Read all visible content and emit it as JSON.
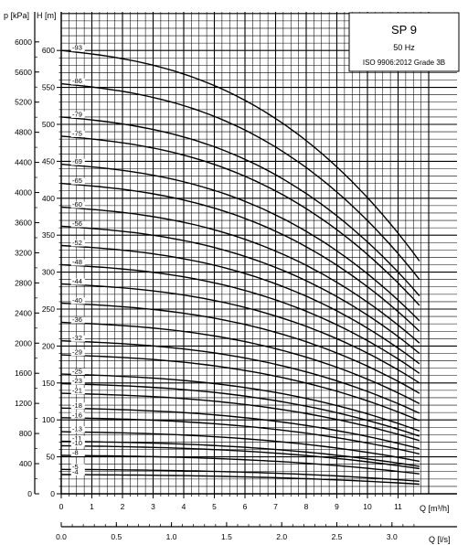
{
  "chart_data": {
    "type": "line",
    "x_units_label": "Q [m³/h]",
    "x2_units_label": "Q [l/s]",
    "y_units_label_left": "p [kPa]",
    "y_units_label_right": "H [m]",
    "title": "SP 9",
    "subtitle": "50 Hz",
    "standard": "ISO 9906:2012 Grade 3B",
    "xlim": [
      0,
      12
    ],
    "ylim": [
      0,
      650
    ],
    "grid": true,
    "x_ticks": [
      "0",
      "1",
      "2",
      "3",
      "4",
      "5",
      "6",
      "7",
      "8",
      "9",
      "10",
      "11"
    ],
    "x2_ticks": [
      "0.0",
      "0.5",
      "1.0",
      "1.5",
      "2.0",
      "2.5",
      "3.0"
    ],
    "h_ticks": [
      "0",
      "50",
      "100",
      "150",
      "200",
      "250",
      "300",
      "350",
      "400",
      "450",
      "500",
      "550",
      "600"
    ],
    "p_ticks": [
      "0",
      "400",
      "800",
      "1200",
      "1600",
      "2000",
      "2400",
      "2800",
      "3200",
      "3600",
      "4000",
      "4400",
      "4800",
      "5200",
      "5600",
      "6000"
    ],
    "series": [
      {
        "name": "-93",
        "h0": 600,
        "h_end": 315
      },
      {
        "name": "-86",
        "h0": 555,
        "h_end": 290
      },
      {
        "name": "-79",
        "h0": 510,
        "h_end": 268
      },
      {
        "name": "-75",
        "h0": 484,
        "h_end": 255
      },
      {
        "name": "-69",
        "h0": 446,
        "h_end": 234
      },
      {
        "name": "-65",
        "h0": 420,
        "h_end": 220
      },
      {
        "name": "-60",
        "h0": 388,
        "h_end": 204
      },
      {
        "name": "-56",
        "h0": 362,
        "h_end": 190
      },
      {
        "name": "-52",
        "h0": 336,
        "h_end": 176
      },
      {
        "name": "-48",
        "h0": 310,
        "h_end": 163
      },
      {
        "name": "-44",
        "h0": 284,
        "h_end": 150
      },
      {
        "name": "-40",
        "h0": 258,
        "h_end": 136
      },
      {
        "name": "-36",
        "h0": 232,
        "h_end": 122
      },
      {
        "name": "-32",
        "h0": 207,
        "h_end": 109
      },
      {
        "name": "-29",
        "h0": 188,
        "h_end": 99
      },
      {
        "name": "-25",
        "h0": 162,
        "h_end": 85
      },
      {
        "name": "-23",
        "h0": 149,
        "h_end": 78
      },
      {
        "name": "-21",
        "h0": 136,
        "h_end": 72
      },
      {
        "name": "-18",
        "h0": 116,
        "h_end": 61
      },
      {
        "name": "-16",
        "h0": 103,
        "h_end": 54
      },
      {
        "name": "-13",
        "h0": 84,
        "h_end": 44
      },
      {
        "name": "-11",
        "h0": 71,
        "h_end": 37
      },
      {
        "name": "-10",
        "h0": 65,
        "h_end": 34
      },
      {
        "name": "-8",
        "h0": 52,
        "h_end": 27
      },
      {
        "name": "-5",
        "h0": 33,
        "h_end": 17
      },
      {
        "name": "-4",
        "h0": 26,
        "h_end": 13
      }
    ]
  }
}
